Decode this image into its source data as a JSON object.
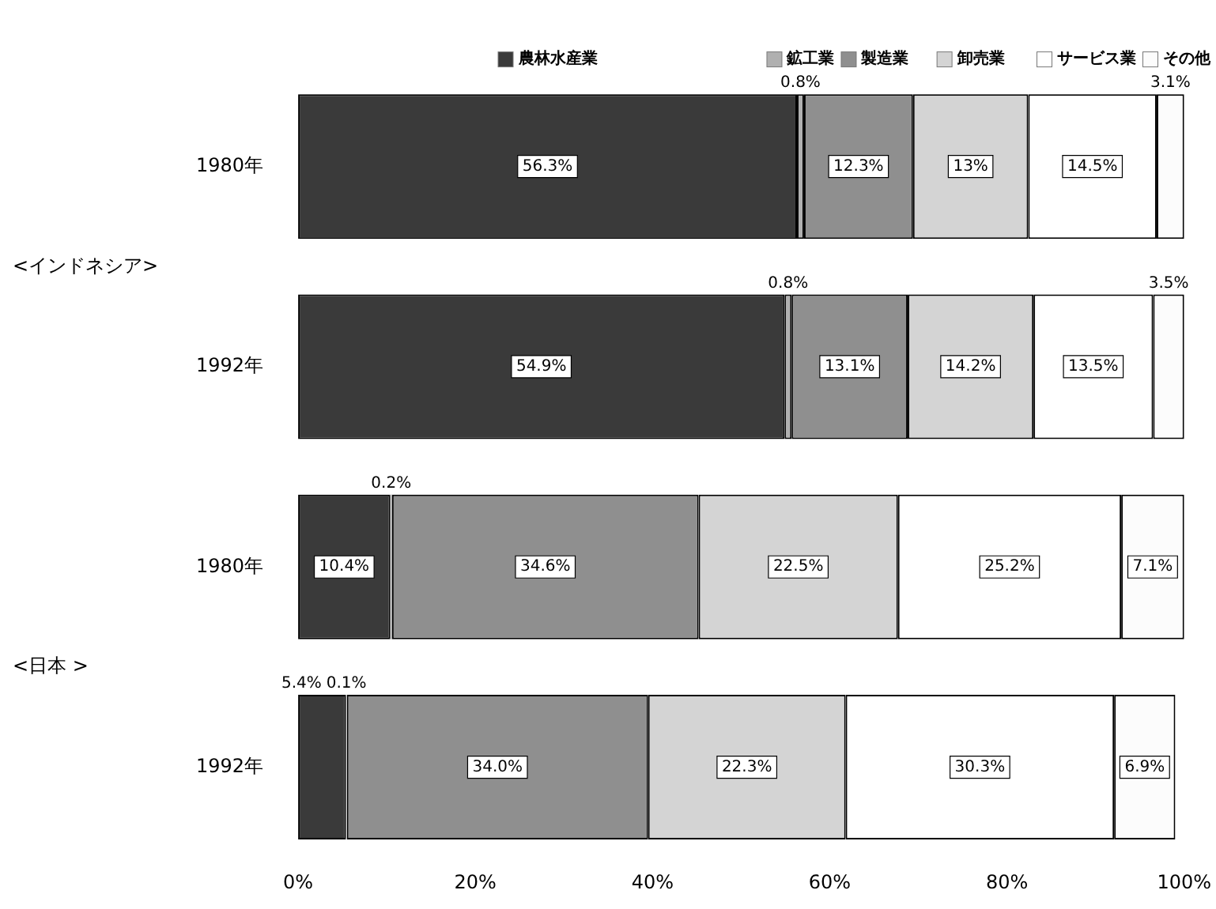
{
  "chart_data": {
    "type": "bar",
    "orientation": "horizontal",
    "stacked": true,
    "categories": [
      "1980年",
      "1992年",
      "1980年",
      "1992年"
    ],
    "series": [
      {
        "name": "農林水産業",
        "color": "#3a3a3a",
        "values": [
          56.3,
          54.9,
          10.4,
          5.4
        ],
        "value_labels": [
          "56.3%",
          "54.9%",
          "10.4%",
          "5.4%"
        ]
      },
      {
        "name": "鉱工業",
        "color": "#b0b0b0",
        "values": [
          0.8,
          0.8,
          0.2,
          0.1
        ],
        "value_labels": [
          "0.8%",
          "0.8%",
          "0.2%",
          "0.1%"
        ]
      },
      {
        "name": "製造業",
        "color": "#8f8f8f",
        "values": [
          12.3,
          13.1,
          34.6,
          34.0
        ],
        "value_labels": [
          "12.3%",
          "13.1%",
          "34.6%",
          "34.0%"
        ]
      },
      {
        "name": "卸売業",
        "color": "#d4d4d4",
        "values": [
          13,
          14.2,
          22.5,
          22.3
        ],
        "value_labels": [
          "13%",
          "14.2%",
          "22.5%",
          "22.3%"
        ]
      },
      {
        "name": "サービス業",
        "color": "#ffffff",
        "values": [
          14.5,
          13.5,
          25.2,
          30.3
        ],
        "value_labels": [
          "14.5%",
          "13.5%",
          "25.2%",
          "30.3%"
        ]
      },
      {
        "name": "その他",
        "color": "#fcfcfc",
        "values": [
          3.1,
          3.5,
          7.1,
          6.9
        ],
        "value_labels": [
          "3.1%",
          "3.5%",
          "7.1%",
          "6.9%"
        ]
      }
    ],
    "xlim": [
      0,
      100
    ],
    "xticks": [
      {
        "value": 0,
        "label": "0%"
      },
      {
        "value": 20,
        "label": "20%"
      },
      {
        "value": 40,
        "label": "40%"
      },
      {
        "value": 60,
        "label": "60%"
      },
      {
        "value": 80,
        "label": "80%"
      },
      {
        "value": 100,
        "label": "100%"
      }
    ],
    "legend": "top",
    "annotations": [
      "<インドネシア>",
      "<日本 >"
    ]
  }
}
